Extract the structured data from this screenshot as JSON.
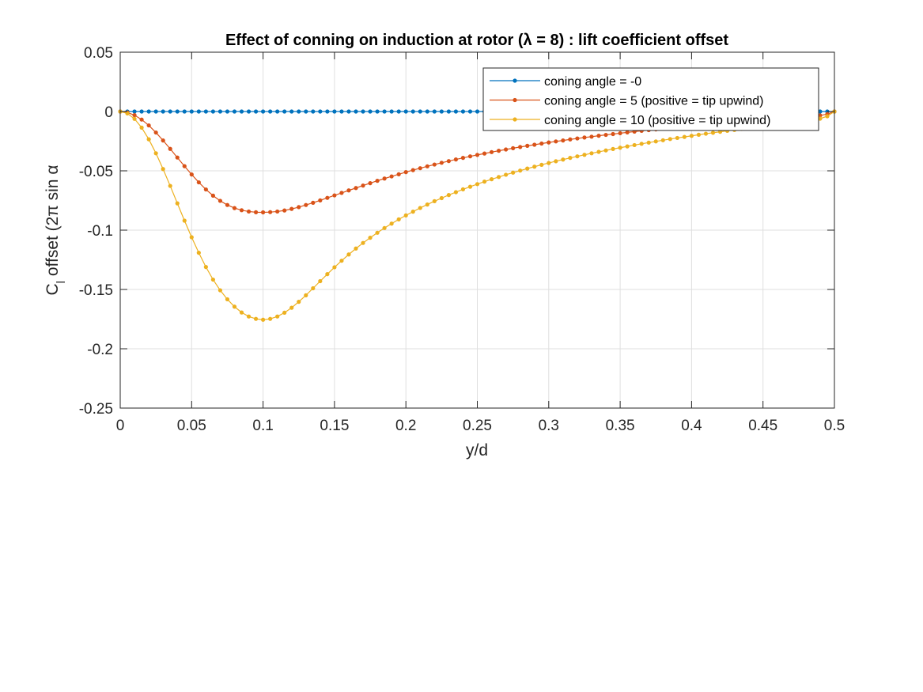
{
  "chart_data": {
    "type": "line",
    "title": "Effect of conning on induction at rotor (λ = 8) : lift coefficient offset",
    "xlabel": "y/d",
    "ylabel": "C_l offset (2π sin α",
    "xlim": [
      0,
      0.5
    ],
    "ylim": [
      -0.25,
      0.05
    ],
    "xticks": [
      0,
      0.05,
      0.1,
      0.15,
      0.2,
      0.25,
      0.3,
      0.35,
      0.4,
      0.45,
      0.5
    ],
    "xtick_labels": [
      "0",
      "0.05",
      "0.1",
      "0.15",
      "0.2",
      "0.25",
      "0.3",
      "0.35",
      "0.4",
      "0.45",
      "0.5"
    ],
    "yticks": [
      0.05,
      0,
      -0.05,
      -0.1,
      -0.15,
      -0.2,
      -0.25
    ],
    "ytick_labels": [
      "0.05",
      "0",
      "-0.05",
      "-0.1",
      "-0.15",
      "-0.2",
      "-0.25"
    ],
    "grid": true,
    "legend_position": "top-right",
    "x": [
      0,
      0.005,
      0.01,
      0.015,
      0.02,
      0.025,
      0.03,
      0.035,
      0.04,
      0.045,
      0.05,
      0.055,
      0.06,
      0.065,
      0.07,
      0.075,
      0.08,
      0.085,
      0.09,
      0.095,
      0.1,
      0.105,
      0.11,
      0.115,
      0.12,
      0.125,
      0.13,
      0.135,
      0.14,
      0.145,
      0.15,
      0.155,
      0.16,
      0.165,
      0.17,
      0.175,
      0.18,
      0.185,
      0.19,
      0.195,
      0.2,
      0.205,
      0.21,
      0.215,
      0.22,
      0.225,
      0.23,
      0.235,
      0.24,
      0.245,
      0.25,
      0.255,
      0.26,
      0.265,
      0.27,
      0.275,
      0.28,
      0.285,
      0.29,
      0.295,
      0.3,
      0.305,
      0.31,
      0.315,
      0.32,
      0.325,
      0.33,
      0.335,
      0.34,
      0.345,
      0.35,
      0.355,
      0.36,
      0.365,
      0.37,
      0.375,
      0.38,
      0.385,
      0.39,
      0.395,
      0.4,
      0.405,
      0.41,
      0.415,
      0.42,
      0.425,
      0.43,
      0.435,
      0.44,
      0.445,
      0.45,
      0.455,
      0.46,
      0.465,
      0.47,
      0.475,
      0.48,
      0.485,
      0.49,
      0.495,
      0.5
    ],
    "series": [
      {
        "name": "coning angle = -0",
        "color": "#0072BD",
        "values": [
          0,
          0,
          0,
          0,
          0,
          0,
          0,
          0,
          0,
          0,
          0,
          0,
          0,
          0,
          0,
          0,
          0,
          0,
          0,
          0,
          0,
          0,
          0,
          0,
          0,
          0,
          0,
          0,
          0,
          0,
          0,
          0,
          0,
          0,
          0,
          0,
          0,
          0,
          0,
          0,
          0,
          0,
          0,
          0,
          0,
          0,
          0,
          0,
          0,
          0,
          0,
          0,
          0,
          0,
          0,
          0,
          0,
          0,
          0,
          0,
          0,
          0,
          0,
          0,
          0,
          0,
          0,
          0,
          0,
          0,
          0,
          0,
          0,
          0,
          0,
          0,
          0,
          0,
          0,
          0,
          0,
          0,
          0,
          0,
          0,
          0,
          0,
          0,
          0,
          0,
          0,
          0,
          0,
          0,
          0,
          0,
          0,
          0,
          0,
          0,
          0
        ]
      },
      {
        "name": "coning angle = 5 (positive = tip upwind)",
        "color": "#D95319",
        "values": [
          0,
          -0.0008,
          -0.0031,
          -0.0068,
          -0.0117,
          -0.0177,
          -0.0244,
          -0.0315,
          -0.0388,
          -0.0461,
          -0.0531,
          -0.0597,
          -0.0657,
          -0.0709,
          -0.0753,
          -0.0788,
          -0.0814,
          -0.0832,
          -0.0843,
          -0.0849,
          -0.085,
          -0.0848,
          -0.0843,
          -0.0834,
          -0.0821,
          -0.0806,
          -0.0788,
          -0.0769,
          -0.0749,
          -0.0728,
          -0.0707,
          -0.0686,
          -0.0665,
          -0.0645,
          -0.0624,
          -0.0604,
          -0.0584,
          -0.0565,
          -0.0547,
          -0.0529,
          -0.0511,
          -0.0494,
          -0.0478,
          -0.0462,
          -0.0447,
          -0.0432,
          -0.0418,
          -0.0404,
          -0.0391,
          -0.0378,
          -0.0366,
          -0.0354,
          -0.0342,
          -0.0331,
          -0.032,
          -0.0309,
          -0.0299,
          -0.0289,
          -0.028,
          -0.027,
          -0.0261,
          -0.0252,
          -0.0244,
          -0.0235,
          -0.0227,
          -0.0219,
          -0.0212,
          -0.0204,
          -0.0197,
          -0.019,
          -0.0183,
          -0.0176,
          -0.0169,
          -0.0163,
          -0.0157,
          -0.0151,
          -0.0145,
          -0.0139,
          -0.0133,
          -0.0127,
          -0.0122,
          -0.0116,
          -0.0111,
          -0.0106,
          -0.0101,
          -0.0096,
          -0.0091,
          -0.0086,
          -0.0082,
          -0.0077,
          -0.0073,
          -0.0068,
          -0.0064,
          -0.006,
          -0.0056,
          -0.0052,
          -0.0046,
          -0.004,
          -0.0033,
          -0.0022,
          0
        ]
      },
      {
        "name": "coning angle = 10 (positive = tip upwind)",
        "color": "#EDB120",
        "values": [
          0,
          -0.0016,
          -0.0062,
          -0.0136,
          -0.0234,
          -0.0352,
          -0.0485,
          -0.0627,
          -0.0774,
          -0.092,
          -0.106,
          -0.1191,
          -0.1311,
          -0.1417,
          -0.1507,
          -0.1583,
          -0.1645,
          -0.1694,
          -0.1728,
          -0.1748,
          -0.1755,
          -0.1748,
          -0.1728,
          -0.1696,
          -0.1654,
          -0.1604,
          -0.1549,
          -0.149,
          -0.143,
          -0.1371,
          -0.1313,
          -0.1258,
          -0.1205,
          -0.1155,
          -0.1108,
          -0.1064,
          -0.1022,
          -0.0982,
          -0.0945,
          -0.0909,
          -0.0876,
          -0.0844,
          -0.0813,
          -0.0784,
          -0.0756,
          -0.073,
          -0.0704,
          -0.068,
          -0.0656,
          -0.0634,
          -0.0612,
          -0.0591,
          -0.0571,
          -0.0552,
          -0.0533,
          -0.0515,
          -0.0498,
          -0.0481,
          -0.0465,
          -0.0449,
          -0.0434,
          -0.0419,
          -0.0405,
          -0.0391,
          -0.0378,
          -0.0365,
          -0.0352,
          -0.034,
          -0.0328,
          -0.0316,
          -0.0305,
          -0.0294,
          -0.0283,
          -0.0272,
          -0.0262,
          -0.0252,
          -0.0242,
          -0.0232,
          -0.0223,
          -0.0214,
          -0.0205,
          -0.0196,
          -0.0187,
          -0.0179,
          -0.0171,
          -0.0163,
          -0.0155,
          -0.0147,
          -0.0139,
          -0.0132,
          -0.0124,
          -0.0117,
          -0.011,
          -0.0103,
          -0.0096,
          -0.0089,
          -0.0081,
          -0.0072,
          -0.006,
          -0.004,
          0
        ]
      }
    ]
  }
}
